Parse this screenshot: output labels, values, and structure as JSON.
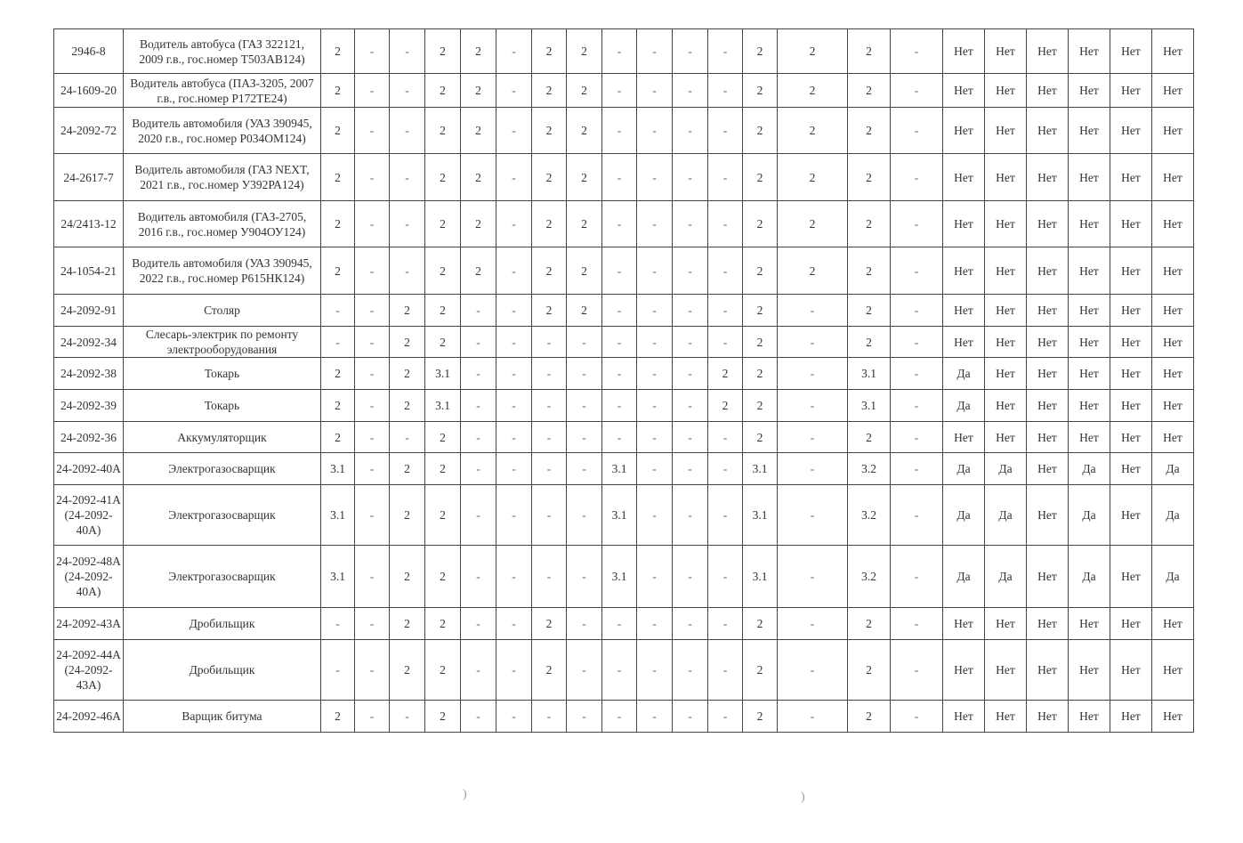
{
  "rows": [
    {
      "id": "2946-8",
      "name": "Водитель автобуса (ГАЗ 322121, 2009 г.в., гос.номер Т503АВ124)",
      "values": [
        "2",
        "-",
        "-",
        "2",
        "2",
        "-",
        "2",
        "2",
        "-",
        "-",
        "-",
        "-",
        "2",
        "2",
        "2",
        "-"
      ],
      "flags": [
        "Нет",
        "Нет",
        "Нет",
        "Нет",
        "Нет",
        "Нет"
      ]
    },
    {
      "id": "24-1609-20",
      "name": "Водитель автобуса (ПАЗ-3205, 2007 г.в., гос.номер Р172ТЕ24)",
      "values": [
        "2",
        "-",
        "-",
        "2",
        "2",
        "-",
        "2",
        "2",
        "-",
        "-",
        "-",
        "-",
        "2",
        "2",
        "2",
        "-"
      ],
      "flags": [
        "Нет",
        "Нет",
        "Нет",
        "Нет",
        "Нет",
        "Нет"
      ]
    },
    {
      "id": "24-2092-72",
      "name": "Водитель автомобиля (УАЗ 390945, 2020 г.в., гос.номер Р034ОМ124)",
      "values": [
        "2",
        "-",
        "-",
        "2",
        "2",
        "-",
        "2",
        "2",
        "-",
        "-",
        "-",
        "-",
        "2",
        "2",
        "2",
        "-"
      ],
      "flags": [
        "Нет",
        "Нет",
        "Нет",
        "Нет",
        "Нет",
        "Нет"
      ]
    },
    {
      "id": "24-2617-7",
      "name": "Водитель автомобиля (ГАЗ NEXT, 2021 г.в., гос.номер У392РА124)",
      "values": [
        "2",
        "-",
        "-",
        "2",
        "2",
        "-",
        "2",
        "2",
        "-",
        "-",
        "-",
        "-",
        "2",
        "2",
        "2",
        "-"
      ],
      "flags": [
        "Нет",
        "Нет",
        "Нет",
        "Нет",
        "Нет",
        "Нет"
      ]
    },
    {
      "id": "24/2413-12",
      "name": "Водитель автомобиля (ГАЗ-2705, 2016 г.в., гос.номер У904ОУ124)",
      "values": [
        "2",
        "-",
        "-",
        "2",
        "2",
        "-",
        "2",
        "2",
        "-",
        "-",
        "-",
        "-",
        "2",
        "2",
        "2",
        "-"
      ],
      "flags": [
        "Нет",
        "Нет",
        "Нет",
        "Нет",
        "Нет",
        "Нет"
      ]
    },
    {
      "id": "24-1054-21",
      "name": "Водитель автомобиля (УАЗ 390945, 2022 г.в., гос.номер Р615НК124)",
      "values": [
        "2",
        "-",
        "-",
        "2",
        "2",
        "-",
        "2",
        "2",
        "-",
        "-",
        "-",
        "-",
        "2",
        "2",
        "2",
        "-"
      ],
      "flags": [
        "Нет",
        "Нет",
        "Нет",
        "Нет",
        "Нет",
        "Нет"
      ]
    },
    {
      "id": "24-2092-91",
      "name": "Столяр",
      "values": [
        "-",
        "-",
        "2",
        "2",
        "-",
        "-",
        "2",
        "2",
        "-",
        "-",
        "-",
        "-",
        "2",
        "-",
        "2",
        "-"
      ],
      "flags": [
        "Нет",
        "Нет",
        "Нет",
        "Нет",
        "Нет",
        "Нет"
      ]
    },
    {
      "id": "24-2092-34",
      "name": "Слесарь-электрик по ремонту электрооборудования",
      "values": [
        "-",
        "-",
        "2",
        "2",
        "-",
        "-",
        "-",
        "-",
        "-",
        "-",
        "-",
        "-",
        "2",
        "-",
        "2",
        "-"
      ],
      "flags": [
        "Нет",
        "Нет",
        "Нет",
        "Нет",
        "Нет",
        "Нет"
      ]
    },
    {
      "id": "24-2092-38",
      "name": "Токарь",
      "values": [
        "2",
        "-",
        "2",
        "3.1",
        "-",
        "-",
        "-",
        "-",
        "-",
        "-",
        "-",
        "2",
        "2",
        "-",
        "3.1",
        "-"
      ],
      "flags": [
        "Да",
        "Нет",
        "Нет",
        "Нет",
        "Нет",
        "Нет"
      ]
    },
    {
      "id": "24-2092-39",
      "name": "Токарь",
      "values": [
        "2",
        "-",
        "2",
        "3.1",
        "-",
        "-",
        "-",
        "-",
        "-",
        "-",
        "-",
        "2",
        "2",
        "-",
        "3.1",
        "-"
      ],
      "flags": [
        "Да",
        "Нет",
        "Нет",
        "Нет",
        "Нет",
        "Нет"
      ]
    },
    {
      "id": "24-2092-36",
      "name": "Аккумуляторщик",
      "values": [
        "2",
        "-",
        "-",
        "2",
        "-",
        "-",
        "-",
        "-",
        "-",
        "-",
        "-",
        "-",
        "2",
        "-",
        "2",
        "-"
      ],
      "flags": [
        "Нет",
        "Нет",
        "Нет",
        "Нет",
        "Нет",
        "Нет"
      ]
    },
    {
      "id": "24-2092-40А",
      "name": "Электрогазосварщик",
      "values": [
        "3.1",
        "-",
        "2",
        "2",
        "-",
        "-",
        "-",
        "-",
        "3.1",
        "-",
        "-",
        "-",
        "3.1",
        "-",
        "3.2",
        "-"
      ],
      "flags": [
        "Да",
        "Да",
        "Нет",
        "Да",
        "Нет",
        "Да"
      ]
    },
    {
      "id": "24-2092-41А (24-2092-40А)",
      "name": "Электрогазосварщик",
      "values": [
        "3.1",
        "-",
        "2",
        "2",
        "-",
        "-",
        "-",
        "-",
        "3.1",
        "-",
        "-",
        "-",
        "3.1",
        "-",
        "3.2",
        "-"
      ],
      "flags": [
        "Да",
        "Да",
        "Нет",
        "Да",
        "Нет",
        "Да"
      ]
    },
    {
      "id": "24-2092-48А (24-2092-40А)",
      "name": "Электрогазосварщик",
      "values": [
        "3.1",
        "-",
        "2",
        "2",
        "-",
        "-",
        "-",
        "-",
        "3.1",
        "-",
        "-",
        "-",
        "3.1",
        "-",
        "3.2",
        "-"
      ],
      "flags": [
        "Да",
        "Да",
        "Нет",
        "Да",
        "Нет",
        "Да"
      ]
    },
    {
      "id": "24-2092-43А",
      "name": "Дробильщик",
      "values": [
        "-",
        "-",
        "2",
        "2",
        "-",
        "-",
        "2",
        "-",
        "-",
        "-",
        "-",
        "-",
        "2",
        "-",
        "2",
        "-"
      ],
      "flags": [
        "Нет",
        "Нет",
        "Нет",
        "Нет",
        "Нет",
        "Нет"
      ]
    },
    {
      "id": "24-2092-44А (24-2092-43А)",
      "name": "Дробильщик",
      "values": [
        "-",
        "-",
        "2",
        "2",
        "-",
        "-",
        "2",
        "-",
        "-",
        "-",
        "-",
        "-",
        "2",
        "-",
        "2",
        "-"
      ],
      "flags": [
        "Нет",
        "Нет",
        "Нет",
        "Нет",
        "Нет",
        "Нет"
      ]
    },
    {
      "id": "24-2092-46А",
      "name": "Варщик битума",
      "values": [
        "2",
        "-",
        "-",
        "2",
        "-",
        "-",
        "-",
        "-",
        "-",
        "-",
        "-",
        "-",
        "2",
        "-",
        "2",
        "-"
      ],
      "flags": [
        "Нет",
        "Нет",
        "Нет",
        "Нет",
        "Нет",
        "Нет"
      ]
    }
  ]
}
